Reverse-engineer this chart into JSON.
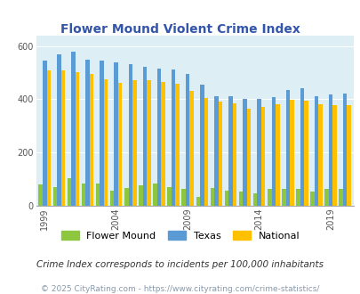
{
  "title": "Flower Mound Violent Crime Index",
  "years": [
    1999,
    2000,
    2001,
    2002,
    2003,
    2004,
    2005,
    2006,
    2007,
    2008,
    2009,
    2010,
    2011,
    2012,
    2013,
    2014,
    2015,
    2016,
    2017,
    2018,
    2019,
    2020
  ],
  "flower_mound": [
    80,
    70,
    105,
    85,
    85,
    58,
    68,
    78,
    82,
    70,
    62,
    32,
    68,
    58,
    52,
    48,
    62,
    65,
    62,
    55,
    64,
    62
  ],
  "texas": [
    545,
    570,
    578,
    550,
    545,
    540,
    530,
    520,
    515,
    510,
    495,
    455,
    410,
    410,
    400,
    400,
    407,
    435,
    440,
    410,
    418,
    420
  ],
  "national": [
    508,
    507,
    500,
    494,
    475,
    463,
    472,
    473,
    466,
    458,
    431,
    405,
    390,
    386,
    363,
    370,
    380,
    398,
    395,
    380,
    378,
    378
  ],
  "flower_mound_color": "#8dc63f",
  "texas_color": "#5b9bd5",
  "national_color": "#ffc000",
  "fig_bg_color": "#ffffff",
  "plot_bg_color": "#deeef5",
  "ylim": [
    0,
    640
  ],
  "yticks": [
    0,
    200,
    400,
    600
  ],
  "xtick_years": [
    1999,
    2004,
    2009,
    2014,
    2019
  ],
  "footnote1": "Crime Index corresponds to incidents per 100,000 inhabitants",
  "footnote2": "© 2025 CityRating.com - https://www.cityrating.com/crime-statistics/",
  "legend_labels": [
    "Flower Mound",
    "Texas",
    "National"
  ],
  "title_color": "#3355aa",
  "footnote1_color": "#333333",
  "footnote2_color": "#8899aa"
}
